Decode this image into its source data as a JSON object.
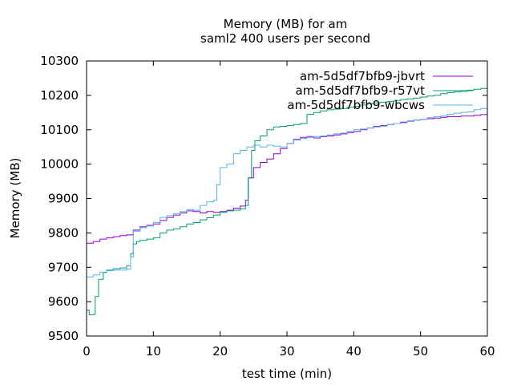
{
  "chart_data": {
    "type": "line",
    "title": "Memory (MB) for am",
    "subtitle": "saml2 400 users per second",
    "xlabel": "test time (min)",
    "ylabel": "Memory (MB)",
    "xlim": [
      0,
      60
    ],
    "ylim": [
      9500,
      10300
    ],
    "xticks": [
      0,
      10,
      20,
      30,
      40,
      50,
      60
    ],
    "yticks": [
      9500,
      9600,
      9700,
      9800,
      9900,
      10000,
      10100,
      10200,
      10300
    ],
    "grid": false,
    "legend_position": "top-right",
    "series": [
      {
        "name": "am-5d5df7bfb9-jbvrt",
        "color": "#9400d3",
        "points": [
          [
            0,
            9770
          ],
          [
            1,
            9775
          ],
          [
            2,
            9782
          ],
          [
            3,
            9786
          ],
          [
            4,
            9789
          ],
          [
            5,
            9792
          ],
          [
            6,
            9794
          ],
          [
            7,
            9808
          ],
          [
            8,
            9818
          ],
          [
            9,
            9822
          ],
          [
            10,
            9826
          ],
          [
            11,
            9836
          ],
          [
            12,
            9845
          ],
          [
            13,
            9852
          ],
          [
            14,
            9858
          ],
          [
            15,
            9864
          ],
          [
            16,
            9862
          ],
          [
            17,
            9858
          ],
          [
            18,
            9862
          ],
          [
            19,
            9860
          ],
          [
            20,
            9862
          ],
          [
            21,
            9866
          ],
          [
            22,
            9872
          ],
          [
            23,
            9878
          ],
          [
            23.8,
            9895
          ],
          [
            24.2,
            9960
          ],
          [
            25,
            9990
          ],
          [
            26,
            10005
          ],
          [
            27,
            10015
          ],
          [
            28,
            10030
          ],
          [
            29,
            10045
          ],
          [
            30,
            10060
          ],
          [
            31,
            10072
          ],
          [
            32,
            10078
          ],
          [
            33,
            10080
          ],
          [
            34,
            10076
          ],
          [
            35,
            10080
          ],
          [
            36,
            10082
          ],
          [
            37,
            10085
          ],
          [
            38,
            10088
          ],
          [
            39,
            10092
          ],
          [
            40,
            10095
          ],
          [
            41,
            10100
          ],
          [
            42,
            10105
          ],
          [
            43,
            10110
          ],
          [
            44,
            10112
          ],
          [
            45,
            10115
          ],
          [
            46,
            10118
          ],
          [
            47,
            10122
          ],
          [
            48,
            10125
          ],
          [
            49,
            10128
          ],
          [
            50,
            10130
          ],
          [
            51,
            10132
          ],
          [
            52,
            10134
          ],
          [
            53,
            10136
          ],
          [
            54,
            10138
          ],
          [
            55,
            10138
          ],
          [
            56,
            10140
          ],
          [
            57,
            10140
          ],
          [
            58,
            10142
          ],
          [
            59,
            10144
          ],
          [
            60,
            10145
          ]
        ]
      },
      {
        "name": "am-5d5df7bfb9-r57vt",
        "color": "#009e73",
        "points": [
          [
            0,
            9575
          ],
          [
            0.4,
            9562
          ],
          [
            1,
            9563
          ],
          [
            1.3,
            9615
          ],
          [
            1.8,
            9665
          ],
          [
            2.5,
            9685
          ],
          [
            3,
            9692
          ],
          [
            4,
            9696
          ],
          [
            5,
            9698
          ],
          [
            6,
            9705
          ],
          [
            6.6,
            9740
          ],
          [
            7,
            9768
          ],
          [
            7.5,
            9775
          ],
          [
            8,
            9778
          ],
          [
            9,
            9782
          ],
          [
            10,
            9786
          ],
          [
            11,
            9800
          ],
          [
            12,
            9808
          ],
          [
            13,
            9812
          ],
          [
            14,
            9818
          ],
          [
            15,
            9826
          ],
          [
            16,
            9830
          ],
          [
            17,
            9838
          ],
          [
            18,
            9844
          ],
          [
            19,
            9852
          ],
          [
            20,
            9860
          ],
          [
            21,
            9864
          ],
          [
            22,
            9866
          ],
          [
            23,
            9870
          ],
          [
            23.8,
            9880
          ],
          [
            24.2,
            9960
          ],
          [
            24.7,
            10040
          ],
          [
            25.2,
            10068
          ],
          [
            26,
            10082
          ],
          [
            27,
            10100
          ],
          [
            28,
            10108
          ],
          [
            29,
            10110
          ],
          [
            30,
            10112
          ],
          [
            31,
            10115
          ],
          [
            32,
            10118
          ],
          [
            33,
            10145
          ],
          [
            34,
            10150
          ],
          [
            35,
            10155
          ],
          [
            36,
            10158
          ],
          [
            37,
            10160
          ],
          [
            38,
            10162
          ],
          [
            39,
            10165
          ],
          [
            40,
            10168
          ],
          [
            41,
            10172
          ],
          [
            42,
            10175
          ],
          [
            43,
            10178
          ],
          [
            44,
            10180
          ],
          [
            45,
            10182
          ],
          [
            46,
            10185
          ],
          [
            47,
            10188
          ],
          [
            48,
            10190
          ],
          [
            49,
            10192
          ],
          [
            50,
            10195
          ],
          [
            51,
            10198
          ],
          [
            52,
            10200
          ],
          [
            53,
            10205
          ],
          [
            54,
            10208
          ],
          [
            55,
            10210
          ],
          [
            56,
            10212
          ],
          [
            57,
            10215
          ],
          [
            58,
            10218
          ],
          [
            59,
            10220
          ],
          [
            60,
            10220
          ]
        ]
      },
      {
        "name": "am-5d5df7bfb9-wbcws",
        "color": "#56b4e9",
        "points": [
          [
            0,
            9672
          ],
          [
            1,
            9678
          ],
          [
            2,
            9686
          ],
          [
            3,
            9690
          ],
          [
            4,
            9692
          ],
          [
            5,
            9692
          ],
          [
            6,
            9694
          ],
          [
            6.6,
            9730
          ],
          [
            7,
            9805
          ],
          [
            8,
            9815
          ],
          [
            9,
            9820
          ],
          [
            10,
            9830
          ],
          [
            11,
            9845
          ],
          [
            12,
            9850
          ],
          [
            13,
            9856
          ],
          [
            14,
            9862
          ],
          [
            15,
            9868
          ],
          [
            16,
            9866
          ],
          [
            17,
            9880
          ],
          [
            18,
            9890
          ],
          [
            19,
            9895
          ],
          [
            19.5,
            9940
          ],
          [
            20,
            9990
          ],
          [
            21,
            10000
          ],
          [
            22,
            10030
          ],
          [
            23,
            10040
          ],
          [
            24,
            10050
          ],
          [
            25,
            10055
          ],
          [
            26,
            10050
          ],
          [
            27,
            10055
          ],
          [
            28,
            10052
          ],
          [
            29,
            10050
          ],
          [
            30,
            10060
          ],
          [
            31,
            10070
          ],
          [
            32,
            10075
          ],
          [
            33,
            10078
          ],
          [
            34,
            10080
          ],
          [
            35,
            10082
          ],
          [
            36,
            10085
          ],
          [
            37,
            10088
          ],
          [
            38,
            10090
          ],
          [
            39,
            10095
          ],
          [
            40,
            10100
          ],
          [
            41,
            10102
          ],
          [
            42,
            10105
          ],
          [
            43,
            10108
          ],
          [
            44,
            10110
          ],
          [
            45,
            10115
          ],
          [
            46,
            10118
          ],
          [
            47,
            10120
          ],
          [
            48,
            10124
          ],
          [
            49,
            10128
          ],
          [
            50,
            10130
          ],
          [
            51,
            10135
          ],
          [
            52,
            10138
          ],
          [
            53,
            10140
          ],
          [
            54,
            10145
          ],
          [
            55,
            10148
          ],
          [
            56,
            10150
          ],
          [
            57,
            10152
          ],
          [
            58,
            10158
          ],
          [
            59,
            10162
          ],
          [
            60,
            10162
          ]
        ]
      }
    ]
  }
}
